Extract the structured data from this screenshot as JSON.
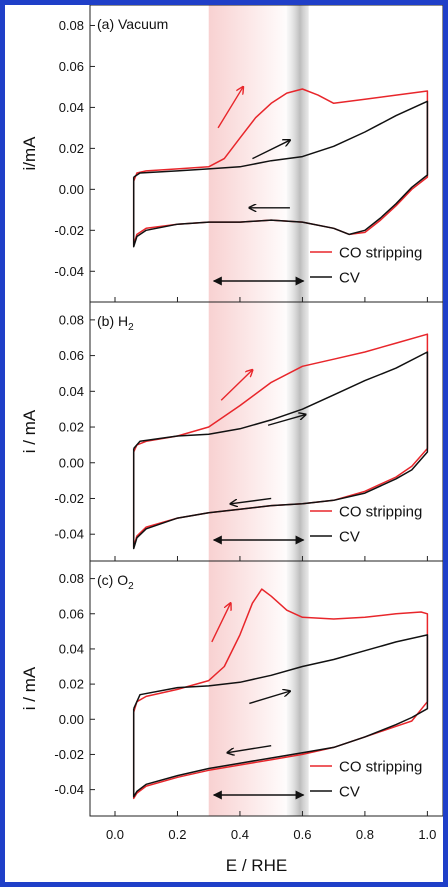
{
  "chart_data": [
    {
      "type": "line",
      "panel_label": "(a) Vacuum",
      "ylabel": "i/mA",
      "xlim": [
        -0.08,
        1.05
      ],
      "ylim": [
        -0.055,
        0.09
      ],
      "yticks": [
        "0.08",
        "0.06",
        "0.04",
        "0.02",
        "0.00",
        "-0.02",
        "-0.04"
      ],
      "ytick_values": [
        0.08,
        0.06,
        0.04,
        0.02,
        0.0,
        -0.02,
        -0.04
      ],
      "legend": {
        "entries": [
          "CO stripping",
          "CV"
        ],
        "placement": "bottom-right"
      },
      "series": [
        {
          "name": "CO stripping",
          "color": "#e8262b",
          "x": [
            0.06,
            0.07,
            0.1,
            0.2,
            0.3,
            0.35,
            0.4,
            0.45,
            0.5,
            0.55,
            0.6,
            0.65,
            0.7,
            0.8,
            0.9,
            1.0,
            1.0,
            0.95,
            0.9,
            0.85,
            0.8,
            0.75,
            0.7,
            0.6,
            0.5,
            0.4,
            0.3,
            0.2,
            0.1,
            0.07,
            0.06,
            0.06
          ],
          "y": [
            0.004,
            0.008,
            0.009,
            0.01,
            0.011,
            0.015,
            0.025,
            0.035,
            0.042,
            0.047,
            0.049,
            0.046,
            0.042,
            0.044,
            0.046,
            0.048,
            0.006,
            0.0,
            -0.008,
            -0.015,
            -0.021,
            -0.022,
            -0.019,
            -0.016,
            -0.015,
            -0.016,
            -0.016,
            -0.017,
            -0.019,
            -0.022,
            -0.027,
            0.004
          ]
        },
        {
          "name": "CV",
          "color": "#111111",
          "x": [
            0.06,
            0.08,
            0.2,
            0.3,
            0.4,
            0.5,
            0.6,
            0.7,
            0.8,
            0.9,
            1.0,
            1.0,
            0.95,
            0.9,
            0.85,
            0.8,
            0.75,
            0.7,
            0.6,
            0.5,
            0.4,
            0.3,
            0.2,
            0.1,
            0.07,
            0.06,
            0.06
          ],
          "y": [
            0.006,
            0.008,
            0.009,
            0.01,
            0.011,
            0.014,
            0.016,
            0.021,
            0.028,
            0.036,
            0.043,
            0.007,
            0.001,
            -0.007,
            -0.014,
            -0.02,
            -0.022,
            -0.019,
            -0.016,
            -0.015,
            -0.016,
            -0.016,
            -0.017,
            -0.02,
            -0.023,
            -0.028,
            0.006
          ]
        }
      ],
      "arrows": [
        {
          "from": [
            0.33,
            0.03
          ],
          "to": [
            0.41,
            0.05
          ],
          "color": "#e8262b"
        },
        {
          "from": [
            0.44,
            0.015
          ],
          "to": [
            0.56,
            0.024
          ],
          "color": "#111111"
        },
        {
          "from": [
            0.56,
            -0.009
          ],
          "to": [
            0.43,
            -0.009
          ],
          "color": "#111111"
        }
      ],
      "double_arrow": [
        0.31,
        0.61
      ]
    },
    {
      "type": "line",
      "panel_label": "(b) H2",
      "panel_label_main": "(b) H",
      "panel_label_sub": "2",
      "ylabel": "i / mA",
      "xlim": [
        -0.08,
        1.05
      ],
      "ylim": [
        -0.055,
        0.09
      ],
      "yticks": [
        "0.08",
        "0.06",
        "0.04",
        "0.02",
        "0.00",
        "-0.02",
        "-0.04"
      ],
      "ytick_values": [
        0.08,
        0.06,
        0.04,
        0.02,
        0.0,
        -0.02,
        -0.04
      ],
      "legend": {
        "entries": [
          "CO stripping",
          "CV"
        ],
        "placement": "bottom-right"
      },
      "series": [
        {
          "name": "CO stripping",
          "color": "#e8262b",
          "x": [
            0.06,
            0.07,
            0.1,
            0.2,
            0.3,
            0.4,
            0.5,
            0.6,
            0.7,
            0.8,
            0.9,
            1.0,
            1.0,
            0.95,
            0.9,
            0.8,
            0.7,
            0.6,
            0.5,
            0.4,
            0.3,
            0.2,
            0.1,
            0.07,
            0.06,
            0.06
          ],
          "y": [
            0.006,
            0.01,
            0.012,
            0.015,
            0.02,
            0.032,
            0.045,
            0.054,
            0.058,
            0.062,
            0.067,
            0.072,
            0.008,
            -0.002,
            -0.008,
            -0.016,
            -0.021,
            -0.023,
            -0.024,
            -0.026,
            -0.028,
            -0.031,
            -0.036,
            -0.041,
            -0.047,
            0.006
          ]
        },
        {
          "name": "CV",
          "color": "#111111",
          "x": [
            0.06,
            0.08,
            0.2,
            0.3,
            0.4,
            0.5,
            0.6,
            0.7,
            0.8,
            0.9,
            1.0,
            1.0,
            0.95,
            0.9,
            0.8,
            0.7,
            0.6,
            0.5,
            0.4,
            0.3,
            0.2,
            0.1,
            0.07,
            0.06,
            0.06
          ],
          "y": [
            0.008,
            0.012,
            0.015,
            0.016,
            0.019,
            0.024,
            0.03,
            0.038,
            0.046,
            0.053,
            0.062,
            0.006,
            -0.004,
            -0.009,
            -0.017,
            -0.021,
            -0.023,
            -0.024,
            -0.026,
            -0.028,
            -0.031,
            -0.037,
            -0.042,
            -0.048,
            0.008
          ]
        }
      ],
      "arrows": [
        {
          "from": [
            0.34,
            0.035
          ],
          "to": [
            0.44,
            0.052
          ],
          "color": "#e8262b"
        },
        {
          "from": [
            0.49,
            0.021
          ],
          "to": [
            0.61,
            0.027
          ],
          "color": "#111111"
        },
        {
          "from": [
            0.5,
            -0.02
          ],
          "to": [
            0.37,
            -0.023
          ],
          "color": "#111111"
        }
      ],
      "double_arrow": [
        0.31,
        0.61
      ]
    },
    {
      "type": "line",
      "panel_label": "(c) O2",
      "panel_label_main": "(c) O",
      "panel_label_sub": "2",
      "ylabel": "i / mA",
      "xlim": [
        -0.08,
        1.05
      ],
      "ylim": [
        -0.055,
        0.09
      ],
      "xlabel": "E / RHE",
      "xticks": [
        "0.0",
        "0.2",
        "0.4",
        "0.6",
        "0.8",
        "1.0"
      ],
      "xtick_values": [
        0.0,
        0.2,
        0.4,
        0.6,
        0.8,
        1.0
      ],
      "yticks": [
        "0.08",
        "0.06",
        "0.04",
        "0.02",
        "0.00",
        "-0.02",
        "-0.04"
      ],
      "ytick_values": [
        0.08,
        0.06,
        0.04,
        0.02,
        0.0,
        -0.02,
        -0.04
      ],
      "legend": {
        "entries": [
          "CO stripping",
          "CV"
        ],
        "placement": "bottom-right"
      },
      "series": [
        {
          "name": "CO stripping",
          "color": "#e8262b",
          "x": [
            0.06,
            0.07,
            0.1,
            0.2,
            0.3,
            0.35,
            0.4,
            0.44,
            0.47,
            0.5,
            0.55,
            0.6,
            0.7,
            0.8,
            0.9,
            0.98,
            1.0,
            1.0,
            0.95,
            0.9,
            0.8,
            0.7,
            0.6,
            0.5,
            0.4,
            0.3,
            0.2,
            0.1,
            0.07,
            0.06,
            0.06
          ],
          "y": [
            0.004,
            0.01,
            0.013,
            0.017,
            0.022,
            0.03,
            0.048,
            0.066,
            0.074,
            0.07,
            0.062,
            0.058,
            0.057,
            0.058,
            0.06,
            0.061,
            0.06,
            0.01,
            -0.001,
            -0.004,
            -0.01,
            -0.016,
            -0.02,
            -0.023,
            -0.026,
            -0.029,
            -0.033,
            -0.038,
            -0.042,
            -0.045,
            0.004
          ]
        },
        {
          "name": "CV",
          "color": "#111111",
          "x": [
            0.06,
            0.08,
            0.2,
            0.3,
            0.4,
            0.5,
            0.6,
            0.7,
            0.8,
            0.9,
            1.0,
            1.0,
            0.95,
            0.9,
            0.8,
            0.7,
            0.6,
            0.5,
            0.4,
            0.3,
            0.2,
            0.1,
            0.07,
            0.06,
            0.06
          ],
          "y": [
            0.006,
            0.014,
            0.018,
            0.019,
            0.021,
            0.025,
            0.03,
            0.034,
            0.039,
            0.044,
            0.048,
            0.006,
            0.001,
            -0.003,
            -0.01,
            -0.016,
            -0.019,
            -0.022,
            -0.025,
            -0.028,
            -0.032,
            -0.037,
            -0.041,
            -0.044,
            0.006
          ]
        }
      ],
      "arrows": [
        {
          "from": [
            0.31,
            0.044
          ],
          "to": [
            0.37,
            0.066
          ],
          "color": "#e8262b"
        },
        {
          "from": [
            0.43,
            0.009
          ],
          "to": [
            0.56,
            0.016
          ],
          "color": "#111111"
        },
        {
          "from": [
            0.5,
            -0.015
          ],
          "to": [
            0.36,
            -0.019
          ],
          "color": "#111111"
        }
      ],
      "double_arrow": [
        0.31,
        0.61
      ]
    }
  ]
}
